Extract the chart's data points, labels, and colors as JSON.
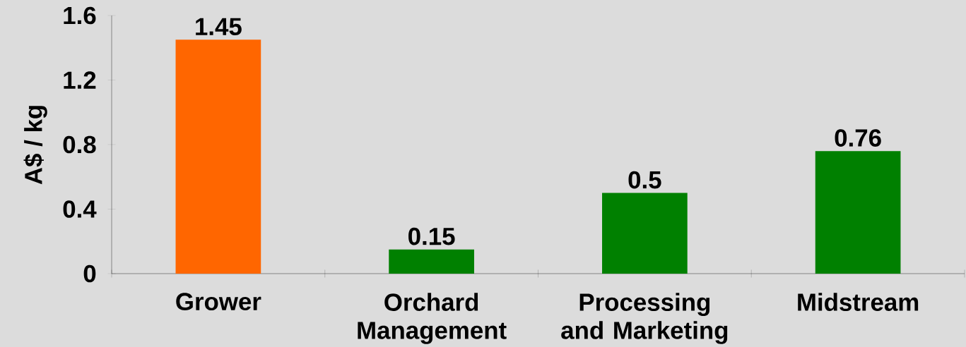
{
  "chart_data": {
    "type": "bar",
    "ylabel": "A$ / kg",
    "categories": [
      "Grower",
      "Orchard Management",
      "Processing and Marketing",
      "Midstream"
    ],
    "values": [
      1.45,
      0.15,
      0.5,
      0.76
    ],
    "colors": [
      "#ff6600",
      "#008000",
      "#008000",
      "#008000"
    ],
    "value_labels": [
      "1.45",
      "0.15",
      "0.5",
      "0.76"
    ],
    "ylim": [
      0,
      1.6
    ],
    "yticks": [
      0,
      0.4,
      0.8,
      1.2,
      1.6
    ]
  }
}
